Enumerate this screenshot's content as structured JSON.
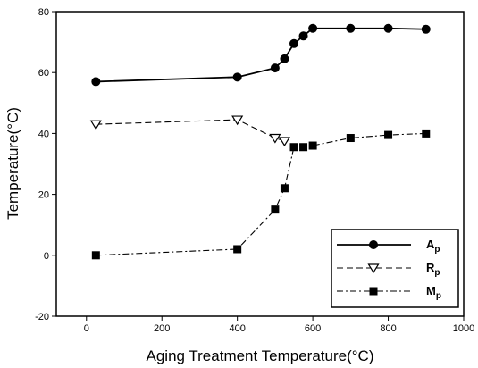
{
  "chart_data": {
    "type": "line",
    "title": "",
    "xlabel": "Aging Treatment Temperature(°C)",
    "ylabel": "Temperature(°C)",
    "xlim": [
      -80,
      1000
    ],
    "ylim": [
      -20,
      80
    ],
    "xticks": [
      0,
      200,
      400,
      600,
      800,
      1000
    ],
    "yticks": [
      -20,
      0,
      20,
      40,
      60,
      80
    ],
    "grid": false,
    "legend_position": "bottom-right",
    "series": [
      {
        "name": "Ap",
        "name_main": "A",
        "name_sub": "p",
        "marker": "circle",
        "line_style": "solid",
        "x": [
          25,
          400,
          500,
          525,
          550,
          575,
          600,
          700,
          800,
          900
        ],
        "y": [
          57,
          58.5,
          61.5,
          64.5,
          69.5,
          72,
          74.5,
          74.5,
          74.5,
          74.2
        ]
      },
      {
        "name": "Rp",
        "name_main": "R",
        "name_sub": "p",
        "marker": "triangle-down-open",
        "line_style": "dashed",
        "x": [
          25,
          400,
          500,
          525
        ],
        "y": [
          43,
          44.5,
          38.5,
          37.5
        ]
      },
      {
        "name": "Mp",
        "name_main": "M",
        "name_sub": "p",
        "marker": "square",
        "line_style": "dashdot",
        "x": [
          25,
          400,
          500,
          525,
          550,
          575,
          600,
          700,
          800,
          900
        ],
        "y": [
          0,
          2,
          15,
          22,
          35.5,
          35.5,
          36,
          38.5,
          39.5,
          40
        ]
      }
    ]
  }
}
